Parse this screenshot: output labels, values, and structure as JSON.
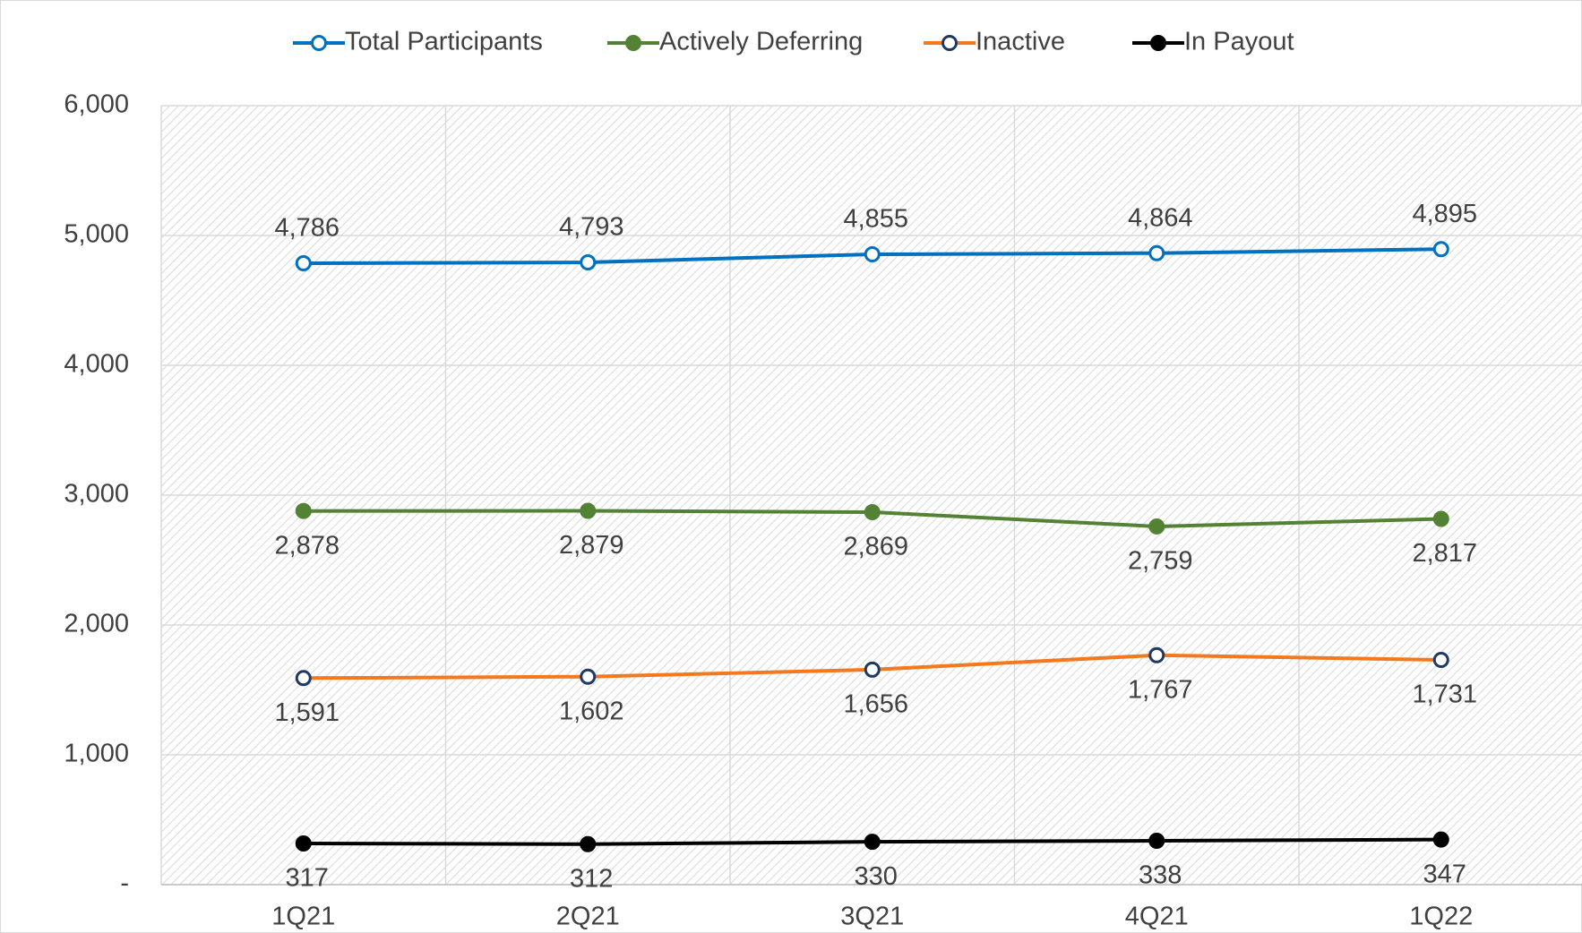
{
  "chart_data": {
    "type": "line",
    "categories": [
      "1Q21",
      "2Q21",
      "3Q21",
      "4Q21",
      "1Q22"
    ],
    "series": [
      {
        "name": "Total Participants",
        "color": "#0070c0",
        "marker_fill": "#ffffff",
        "marker_stroke": "#0070c0",
        "label_position": "above",
        "values": [
          4786,
          4793,
          4855,
          4864,
          4895
        ],
        "value_labels": [
          "4,786",
          "4,793",
          "4,855",
          "4,864",
          "4,895"
        ]
      },
      {
        "name": "Actively Deferring",
        "color": "#548235",
        "marker_fill": "#548235",
        "marker_stroke": "#548235",
        "label_position": "below",
        "values": [
          2878,
          2879,
          2869,
          2759,
          2817
        ],
        "value_labels": [
          "2,878",
          "2,879",
          "2,869",
          "2,759",
          "2,817"
        ]
      },
      {
        "name": "Inactive",
        "color": "#f4781e",
        "marker_fill": "#ffffff",
        "marker_stroke": "#1f3864",
        "label_position": "below",
        "values": [
          1591,
          1602,
          1656,
          1767,
          1731
        ],
        "value_labels": [
          "1,591",
          "1,602",
          "1,656",
          "1,767",
          "1,731"
        ]
      },
      {
        "name": "In Payout",
        "color": "#000000",
        "marker_fill": "#000000",
        "marker_stroke": "#000000",
        "label_position": "below",
        "values": [
          317,
          312,
          330,
          338,
          347
        ],
        "value_labels": [
          "317",
          "312",
          "330",
          "338",
          "347"
        ]
      }
    ],
    "ylim": [
      0,
      6000
    ],
    "yticks": [
      {
        "value": 0,
        "label": "-"
      },
      {
        "value": 1000,
        "label": "1,000"
      },
      {
        "value": 2000,
        "label": "2,000"
      },
      {
        "value": 3000,
        "label": "3,000"
      },
      {
        "value": 4000,
        "label": "4,000"
      },
      {
        "value": 5000,
        "label": "5,000"
      },
      {
        "value": 6000,
        "label": "6,000"
      }
    ],
    "grid": true,
    "legend": "top"
  }
}
